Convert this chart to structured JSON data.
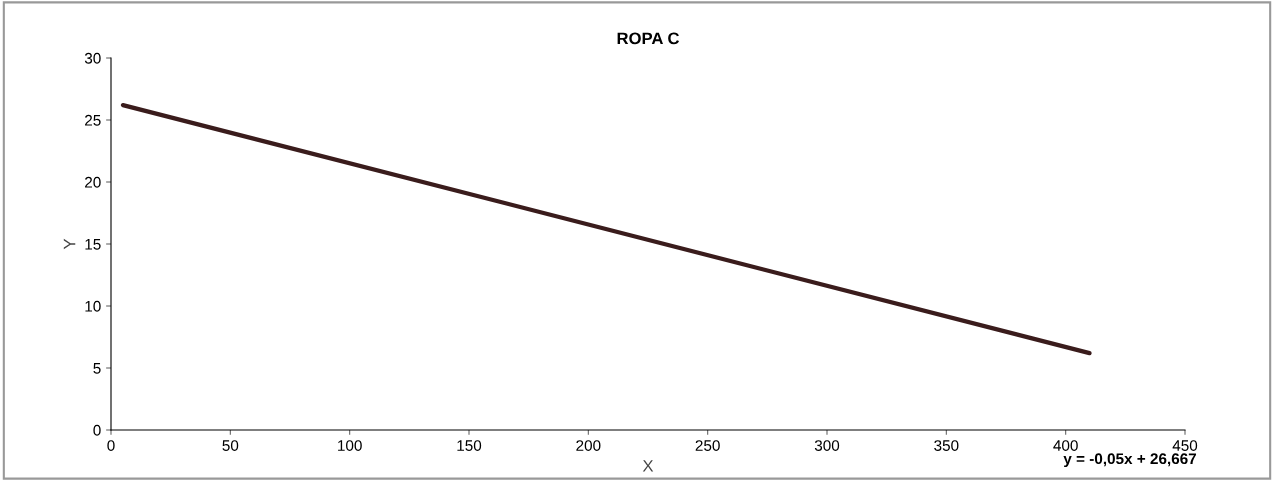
{
  "chart_data": {
    "type": "line",
    "title": "ROPA C",
    "xlabel": "X",
    "ylabel": "Y",
    "series": [
      {
        "x": [
          5,
          410
        ],
        "values": [
          26.2,
          6.2
        ],
        "color": "#3a1c1c"
      }
    ],
    "xlim": [
      0,
      450
    ],
    "xticks": [
      0,
      50,
      100,
      150,
      200,
      250,
      300,
      350,
      400,
      450
    ],
    "ylim": [
      0,
      30
    ],
    "yticks": [
      0,
      5,
      10,
      15,
      20,
      25,
      30
    ],
    "grid": false,
    "marker": "none",
    "line_style": "solid",
    "annotations": [
      "y = -0,05x + 26,667"
    ]
  }
}
